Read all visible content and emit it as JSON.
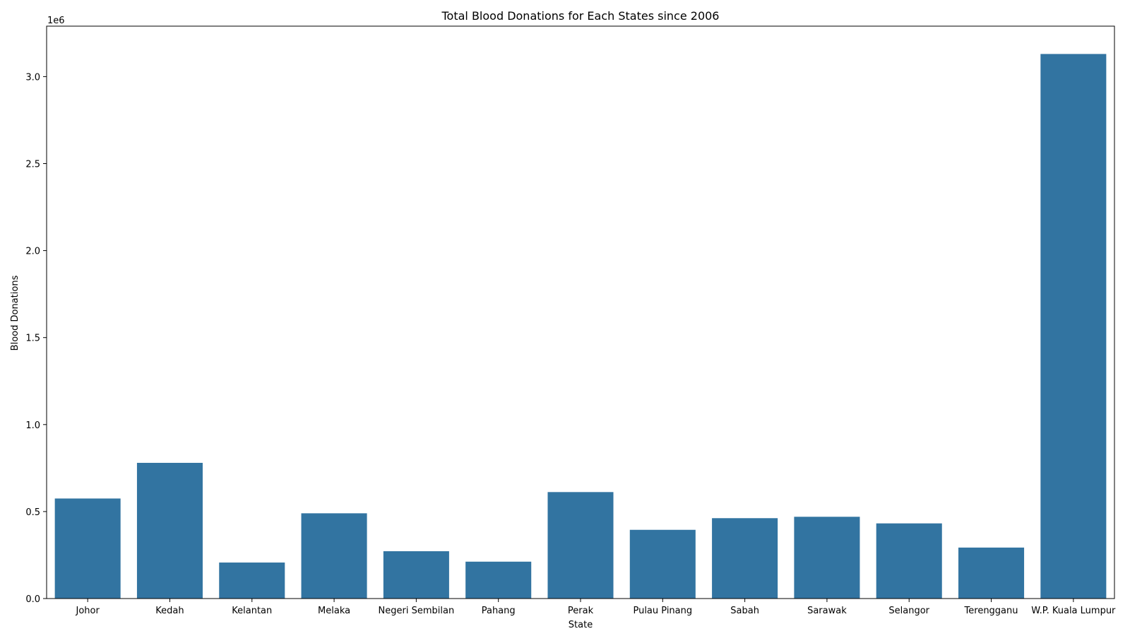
{
  "chart_data": {
    "type": "bar",
    "title": "Total Blood Donations for Each States since 2006",
    "xlabel": "State",
    "ylabel": "Blood Donations",
    "offset_label": "1e6",
    "categories": [
      "Johor",
      "Kedah",
      "Kelantan",
      "Melaka",
      "Negeri Sembilan",
      "Pahang",
      "Perak",
      "Pulau Pinang",
      "Sabah",
      "Sarawak",
      "Selangor",
      "Terengganu",
      "W.P. Kuala Lumpur"
    ],
    "values": [
      575000,
      780000,
      207000,
      490000,
      272000,
      212000,
      612000,
      395000,
      462000,
      470000,
      432000,
      293000,
      3130000
    ],
    "ylim": [
      0,
      3290000
    ],
    "yticks": [
      0,
      500000,
      1000000,
      1500000,
      2000000,
      2500000,
      3000000
    ],
    "ytick_labels": [
      "0.0",
      "0.5",
      "1.0",
      "1.5",
      "2.0",
      "2.5",
      "3.0"
    ],
    "bar_color": "#3274a1",
    "grid": false,
    "legend": "none"
  }
}
